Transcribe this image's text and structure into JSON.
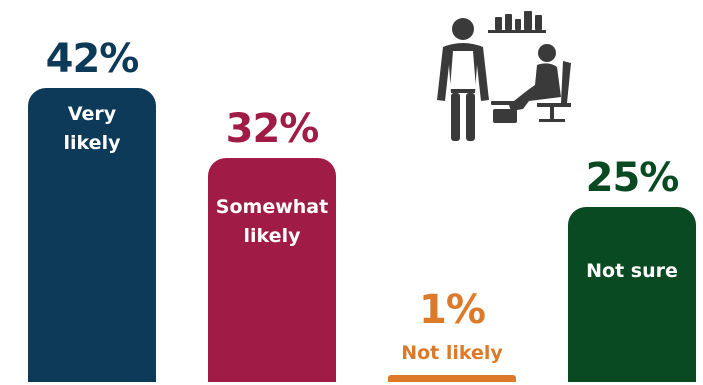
{
  "chart_data": {
    "type": "bar",
    "categories": [
      "Very likely",
      "Somewhat likely",
      "Not likely",
      "Not sure"
    ],
    "values": [
      42,
      32,
      1,
      25
    ],
    "value_labels": [
      "42%",
      "32%",
      "1%",
      "25%"
    ],
    "colors": [
      "#0e3a5a",
      "#a01c46",
      "#dc7a2a",
      "#0a4a23"
    ],
    "ylim": [
      0,
      42
    ],
    "title": "",
    "xlabel": "",
    "ylabel": "",
    "grid": false
  },
  "decor": {
    "icon": "salon-worker-pedicure-icon",
    "icon_color": "#3a3a3a"
  }
}
